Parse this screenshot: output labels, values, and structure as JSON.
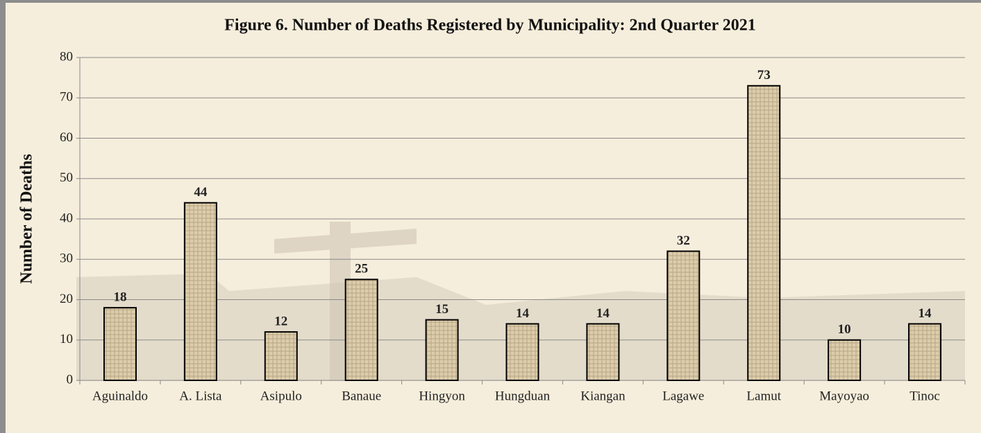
{
  "chart_data": {
    "type": "bar",
    "title": "Figure 6. Number of Deaths Registered by Municipality: 2nd Quarter 2021",
    "y_label": "Number of Deaths",
    "categories": [
      "Aguinaldo",
      "A. Lista",
      "Asipulo",
      "Banaue",
      "Hingyon",
      "Hungduan",
      "Kiangan",
      "Lagawe",
      "Lamut",
      "Mayoyao",
      "Tinoc"
    ],
    "values": [
      18,
      44,
      12,
      25,
      15,
      14,
      14,
      32,
      73,
      10,
      14
    ],
    "color": "#dccdab",
    "ylim": [
      0,
      80
    ],
    "yticks": [
      0,
      10,
      20,
      30,
      40,
      50,
      60,
      70,
      80
    ],
    "grid": true
  }
}
